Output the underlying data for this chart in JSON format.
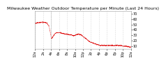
{
  "title": "Milwaukee Weather Outdoor Temperature per Minute (Last 24 Hours)",
  "bg_color": "#ffffff",
  "line_color": "#dd0000",
  "grid_color": "#bbbbbb",
  "y_ticks": [
    10,
    20,
    30,
    40,
    50,
    60,
    70
  ],
  "y_min": 5,
  "y_max": 75,
  "num_points": 1440,
  "temp_profile": [
    [
      0,
      52
    ],
    [
      30,
      53
    ],
    [
      60,
      53.5
    ],
    [
      90,
      54
    ],
    [
      120,
      54
    ],
    [
      150,
      53.5
    ],
    [
      170,
      53
    ],
    [
      190,
      51
    ],
    [
      210,
      46
    ],
    [
      230,
      35
    ],
    [
      240,
      28
    ],
    [
      250,
      24
    ],
    [
      260,
      26
    ],
    [
      280,
      30
    ],
    [
      310,
      34
    ],
    [
      340,
      35
    ],
    [
      370,
      35
    ],
    [
      400,
      34
    ],
    [
      430,
      33
    ],
    [
      460,
      32
    ],
    [
      490,
      32
    ],
    [
      520,
      31
    ],
    [
      540,
      31
    ],
    [
      560,
      30
    ],
    [
      580,
      29
    ],
    [
      600,
      30
    ],
    [
      620,
      31
    ],
    [
      640,
      32
    ],
    [
      660,
      32
    ],
    [
      680,
      31
    ],
    [
      700,
      30
    ],
    [
      720,
      28
    ],
    [
      740,
      26
    ],
    [
      760,
      24
    ],
    [
      780,
      22
    ],
    [
      800,
      20
    ],
    [
      820,
      18
    ],
    [
      840,
      17
    ],
    [
      860,
      16
    ],
    [
      880,
      15
    ],
    [
      900,
      14
    ],
    [
      920,
      13
    ],
    [
      940,
      13
    ],
    [
      960,
      12
    ],
    [
      980,
      11
    ],
    [
      1000,
      11
    ],
    [
      1020,
      11
    ],
    [
      1040,
      11
    ],
    [
      1060,
      11
    ],
    [
      1080,
      11
    ],
    [
      1100,
      11
    ],
    [
      1120,
      11
    ],
    [
      1140,
      11
    ],
    [
      1160,
      11
    ],
    [
      1180,
      11
    ],
    [
      1200,
      11
    ],
    [
      1220,
      11
    ],
    [
      1240,
      11
    ],
    [
      1260,
      11
    ],
    [
      1280,
      11
    ],
    [
      1300,
      11
    ],
    [
      1320,
      10
    ],
    [
      1340,
      10
    ],
    [
      1360,
      10
    ],
    [
      1380,
      9
    ],
    [
      1400,
      9
    ],
    [
      1420,
      8
    ],
    [
      1440,
      8
    ]
  ],
  "x_tick_positions": [
    0,
    120,
    240,
    360,
    480,
    600,
    720,
    840,
    960,
    1080,
    1200,
    1320,
    1440
  ],
  "x_tick_labels": [
    "12a",
    "2a",
    "4a",
    "6a",
    "8a",
    "10a",
    "12p",
    "2p",
    "4p",
    "6p",
    "8p",
    "10p",
    "12a"
  ],
  "vline_x": 240,
  "title_fontsize": 4.5,
  "tick_fontsize": 3.5
}
